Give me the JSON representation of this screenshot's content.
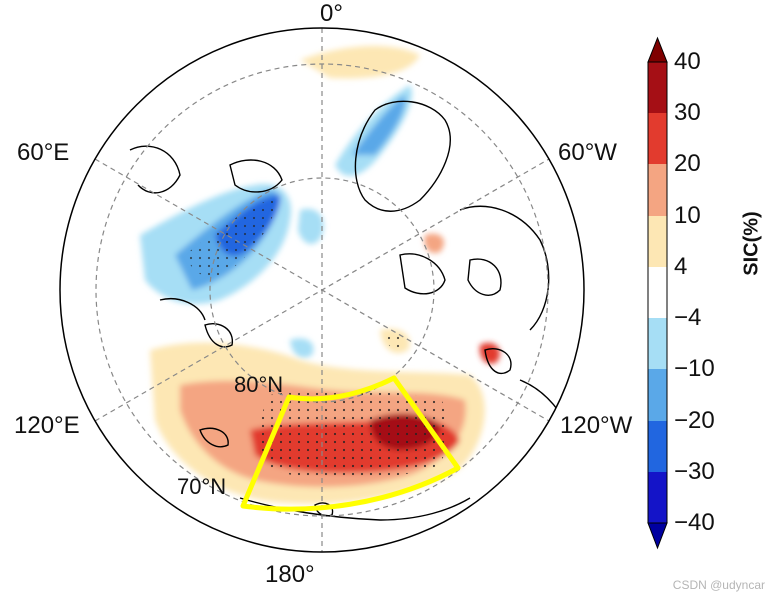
{
  "map": {
    "projection": "north polar stereographic",
    "longitude_labels": {
      "lon_0": "0°",
      "lon_60w": "60°W",
      "lon_120w": "120°W",
      "lon_180": "180°",
      "lon_120e": "120°E",
      "lon_60e": "60°E"
    },
    "latitude_labels": {
      "lat_80n": "80°N",
      "lat_70n": "70°N"
    },
    "highlight_box_color": "#ffff00",
    "stipple_meaning": "significance dots"
  },
  "colorbar": {
    "title": "SIC(%)",
    "ticks": [
      "40",
      "30",
      "20",
      "10",
      "4",
      "−4",
      "−10",
      "−20",
      "−30",
      "−40"
    ],
    "colors_top_to_bottom": [
      "#a50f15",
      "#e23b2e",
      "#f4a582",
      "#fde7b4",
      "#ffffff",
      "#a6def5",
      "#5aa8e8",
      "#2166e0",
      "#1414c8"
    ],
    "extend_top_color": "#7f0000",
    "extend_bottom_color": "#0000a0"
  },
  "watermark": "CSDN @udyncar"
}
